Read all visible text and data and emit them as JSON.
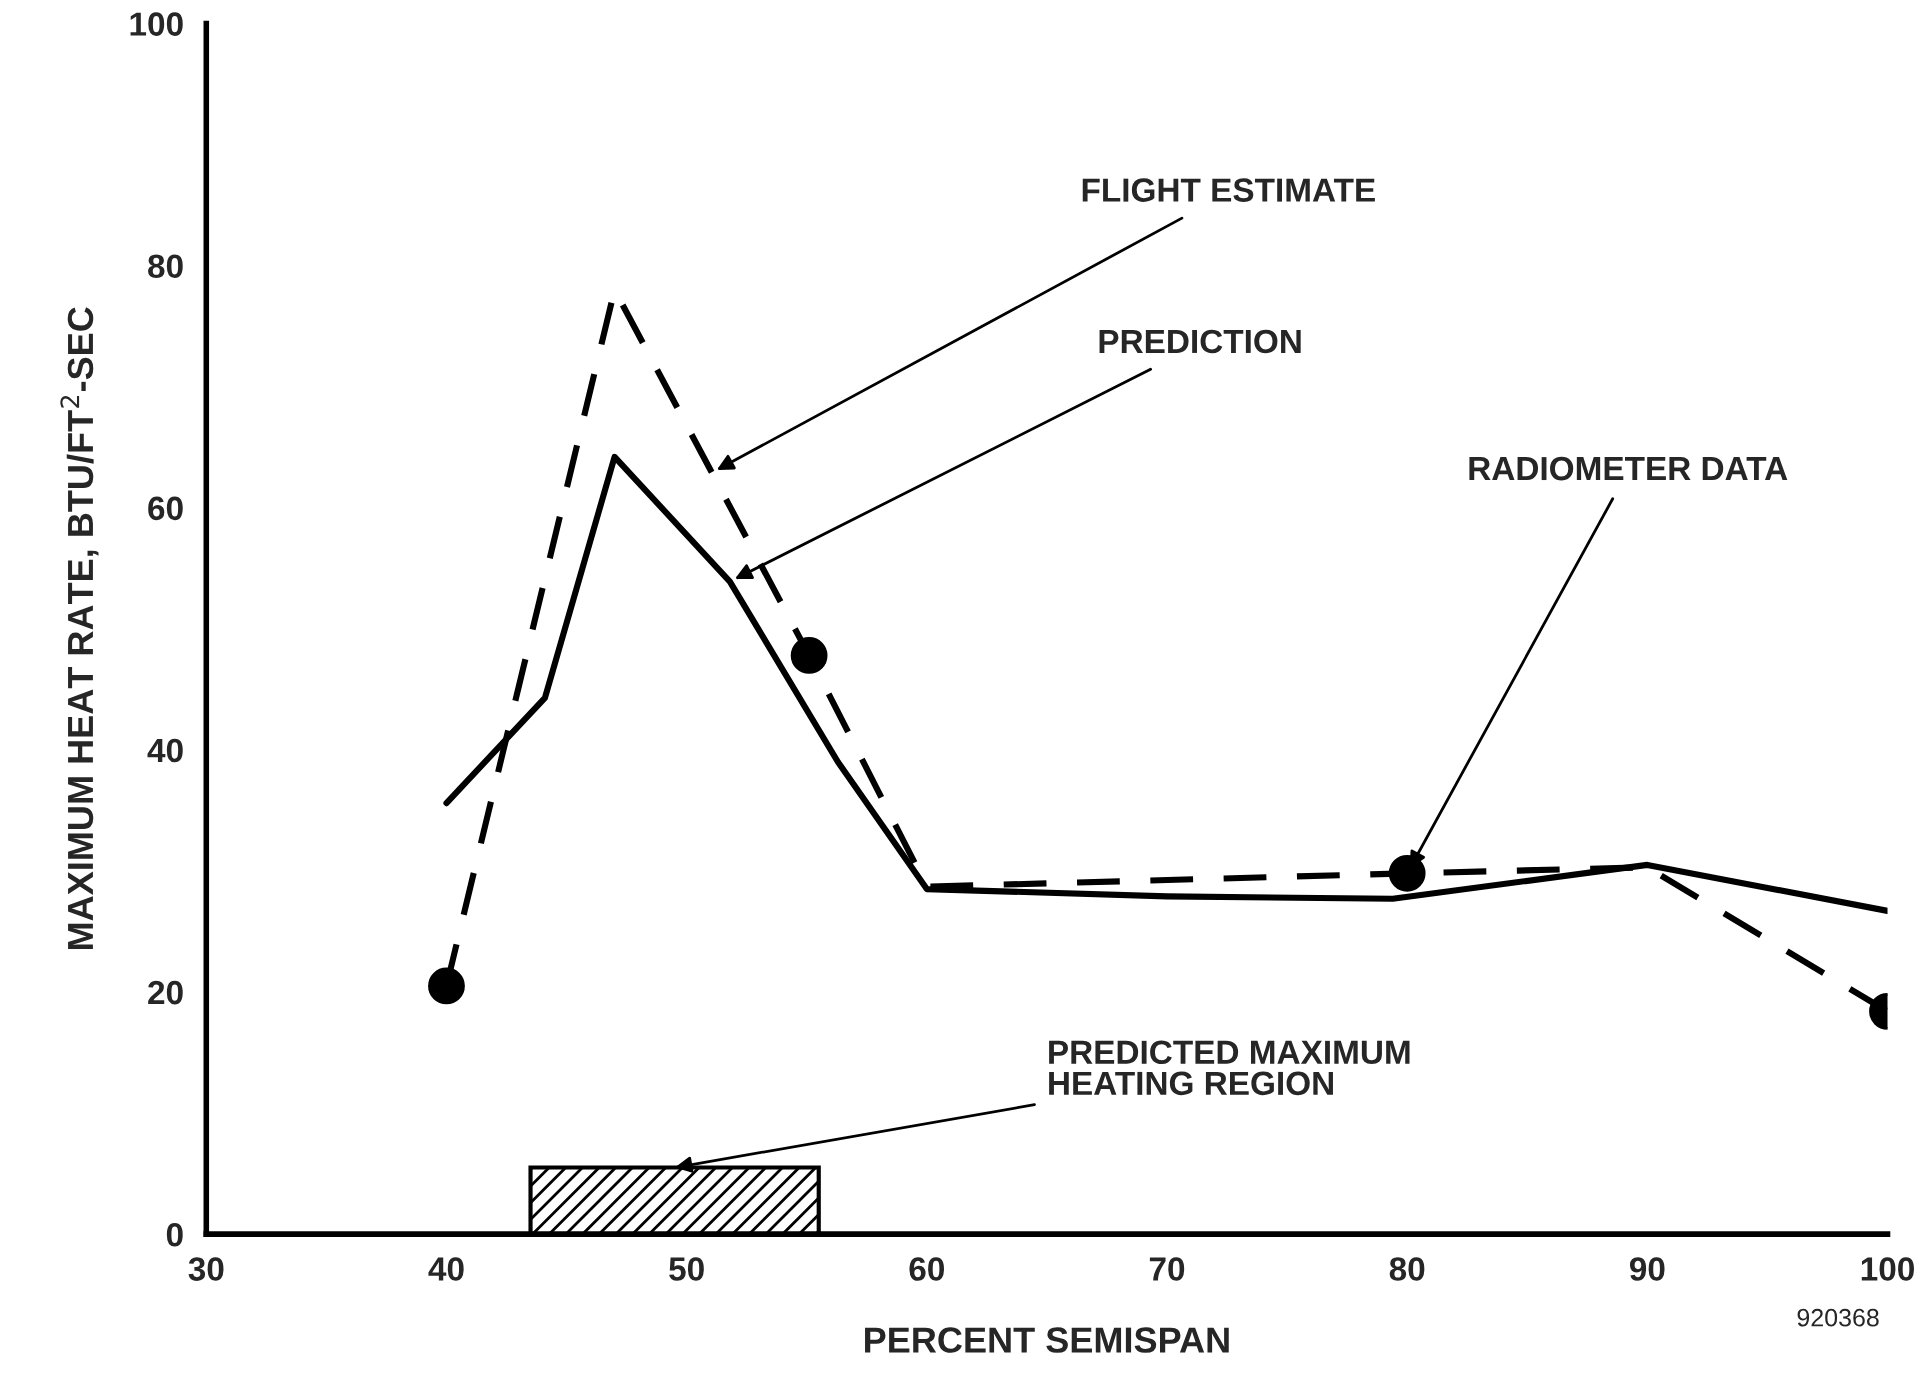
{
  "chart_data": {
    "type": "line",
    "xlabel": "PERCENT SEMISPAN",
    "ylabel": "MAXIMUM HEAT RATE, BTU/FT$^{2}$-SEC",
    "xlim": [
      30,
      100
    ],
    "ylim": [
      0,
      100
    ],
    "xticks": [
      30,
      40,
      50,
      60,
      70,
      80,
      90,
      100
    ],
    "yticks": [
      0,
      20,
      40,
      60,
      80,
      100
    ],
    "grid": false,
    "legend": false,
    "series": [
      {
        "name": "FLIGHT ESTIMATE",
        "color": "#000000",
        "line_style": "dashed",
        "marker": "none",
        "x": [
          40,
          47,
          55.1,
          60,
          80,
          90,
          100
        ],
        "values": [
          20.5,
          78,
          47.8,
          28.7,
          29.8,
          30.3,
          18.4
        ]
      },
      {
        "name": "PREDICTION",
        "color": "#000000",
        "line_style": "solid",
        "marker": "none",
        "x": [
          40,
          44.1,
          47,
          51.8,
          56.3,
          60,
          70,
          79.4,
          90,
          100
        ],
        "values": [
          35.6,
          44.3,
          64.2,
          53.9,
          39,
          28.5,
          27.9,
          27.7,
          30.5,
          26.7
        ]
      },
      {
        "name": "RADIOMETER DATA",
        "type": "scatter",
        "color": "#000000",
        "marker": "circle",
        "x": [
          40,
          55.1,
          80,
          100
        ],
        "values": [
          20.5,
          47.8,
          29.8,
          18.4
        ]
      }
    ],
    "bands": [
      {
        "axis": "x",
        "from": 43.5,
        "to": 55.5,
        "label": "PREDICTED MAXIMUM\nHEATING REGION",
        "color": "#000000"
      }
    ],
    "annotations": [
      "920368"
    ]
  }
}
